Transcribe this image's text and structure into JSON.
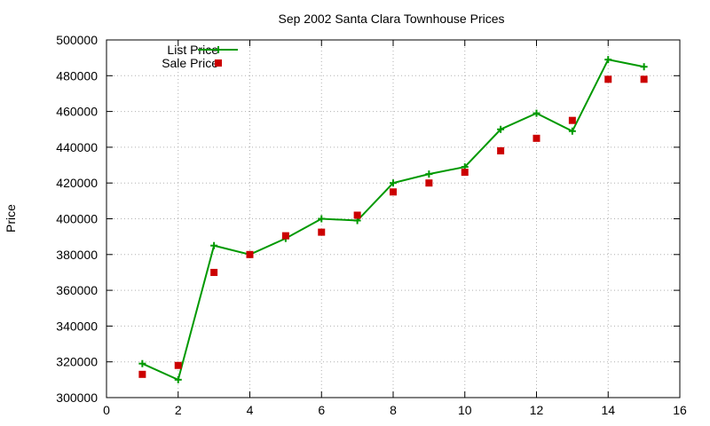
{
  "chart_data": {
    "type": "line",
    "title": "Sep 2002 Santa Clara Townhouse Prices",
    "xlabel": "",
    "ylabel": "Price",
    "xlim": [
      0,
      16
    ],
    "ylim": [
      300000,
      500000
    ],
    "xticks": [
      0,
      2,
      4,
      6,
      8,
      10,
      12,
      14,
      16
    ],
    "yticks": [
      300000,
      320000,
      340000,
      360000,
      380000,
      400000,
      420000,
      440000,
      460000,
      480000,
      500000
    ],
    "grid": true,
    "legend_position": "top-left",
    "series": [
      {
        "name": "List Price",
        "style": "line-with-plus-markers",
        "color": "#009900",
        "x": [
          1,
          2,
          3,
          4,
          5,
          6,
          7,
          8,
          9,
          10,
          11,
          12,
          13,
          14,
          15
        ],
        "y": [
          319000,
          310000,
          385000,
          380000,
          389000,
          400000,
          399000,
          420000,
          425000,
          429000,
          450000,
          459000,
          449000,
          489000,
          485000
        ]
      },
      {
        "name": "Sale Price",
        "style": "square-markers",
        "color": "#cc0000",
        "x": [
          1,
          2,
          3,
          4,
          5,
          6,
          7,
          8,
          9,
          10,
          11,
          12,
          13,
          14,
          15
        ],
        "y": [
          313000,
          318000,
          370000,
          380000,
          390500,
          392500,
          402000,
          415000,
          420000,
          426000,
          438000,
          445000,
          455000,
          478000,
          478000
        ]
      }
    ]
  }
}
